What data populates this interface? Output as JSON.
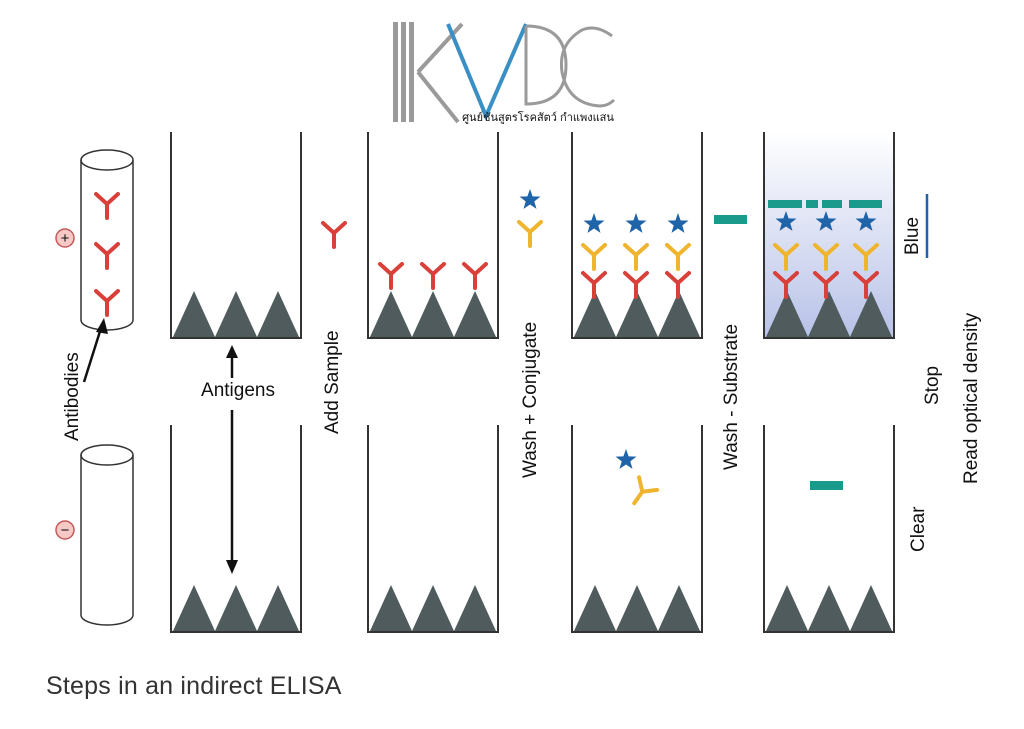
{
  "logo": {
    "text": "KVDC",
    "subtitle": "ศูนย์ชันสูตรโรคสัตว์ กำแพงแสน",
    "colors": {
      "gray": "#9a9a9a",
      "blue": "#3a8fc4"
    }
  },
  "signs": {
    "positive": "+",
    "negative": "−"
  },
  "labels": {
    "antibodies": "Antibodies",
    "antigens": "Antigens",
    "add_sample": "Add Sample",
    "wash_conjugate": "Wash + Conjugate",
    "wash_substrate": "Wash - Substrate",
    "blue": "Blue",
    "stop": "Stop",
    "read_od": "Read optical density",
    "clear": "Clear"
  },
  "caption": "Steps in an indirect ELISA",
  "colors": {
    "antigen": "#4f5b5c",
    "antibody": "#d9403a",
    "conjugate": "#f0b52e",
    "enzyme": "#1f63a8",
    "substrate": "#1a9a8a",
    "well_line": "#333333",
    "blue_fill": "#b8c2e8",
    "sign_fill": "#f6c8c6",
    "sign_stroke": "#c45a5a"
  }
}
